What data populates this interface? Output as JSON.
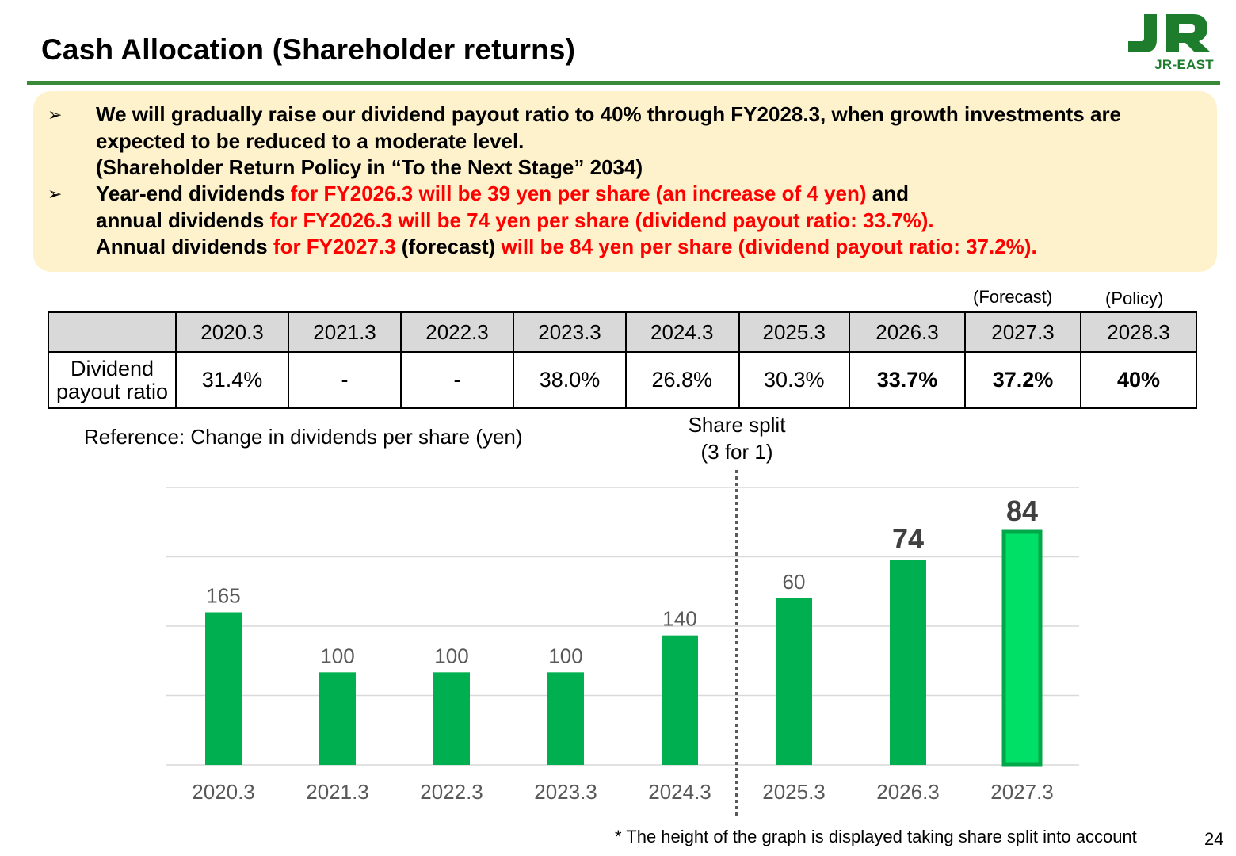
{
  "title": "Cash Allocation (Shareholder returns)",
  "logo": {
    "text": "JR-EAST",
    "brand_color": "#1d7d2d"
  },
  "summary": {
    "background": "#fef2cd",
    "bullets": [
      {
        "icon": "arrow-bullet-icon",
        "lines": [
          [
            {
              "text": "We will gradually raise our dividend payout ratio to 40% through FY2028.3, when growth investments are",
              "red": false
            }
          ],
          [
            {
              "text": "expected to be reduced to a moderate level.",
              "red": false
            }
          ],
          [
            {
              "text": "(Shareholder Return Policy in “To the Next Stage” 2034)",
              "red": false
            }
          ]
        ]
      },
      {
        "icon": "arrow-bullet-icon",
        "lines": [
          [
            {
              "text": "Year-end dividends ",
              "red": false
            },
            {
              "text": "for FY2026.3 will be 39 yen per share (an increase of 4 yen)",
              "red": true
            },
            {
              "text": " and",
              "red": false
            }
          ],
          [
            {
              "text": "annual dividends ",
              "red": false
            },
            {
              "text": "for FY2026.3 will be 74 yen per share (dividend payout ratio: 33.7%).",
              "red": true
            }
          ],
          [
            {
              "text": "Annual dividends ",
              "red": false
            },
            {
              "text": "for FY2027.3",
              "red": true
            },
            {
              "text": " (forecast) ",
              "red": false
            },
            {
              "text": "will be 84 yen per share (dividend payout ratio: 37.2%).",
              "red": true
            }
          ]
        ]
      }
    ]
  },
  "ratio_table": {
    "row_label_line1": "Dividend",
    "row_label_line2": "payout ratio",
    "forecast_note": "(Forecast)",
    "policy_note": "(Policy)",
    "columns": [
      {
        "year": "2020.3",
        "ratio": "31.4%",
        "bold": false
      },
      {
        "year": "2021.3",
        "ratio": "-",
        "bold": false
      },
      {
        "year": "2022.3",
        "ratio": "-",
        "bold": false
      },
      {
        "year": "2023.3",
        "ratio": "38.0%",
        "bold": false
      },
      {
        "year": "2024.3",
        "ratio": "26.8%",
        "bold": false
      },
      {
        "year": "2025.3",
        "ratio": "30.3%",
        "bold": false
      },
      {
        "year": "2026.3",
        "ratio": "33.7%",
        "bold": true
      },
      {
        "year": "2027.3",
        "ratio": "37.2%",
        "bold": true
      },
      {
        "year": "2028.3",
        "ratio": "40%",
        "bold": true
      }
    ]
  },
  "chart_labels": {
    "reference": "Reference: Change in dividends per share (yen)",
    "split_line1": "Share split",
    "split_line2": "(3 for 1)"
  },
  "chart_data": {
    "type": "bar",
    "categories": [
      "2020.3",
      "2021.3",
      "2022.3",
      "2023.3",
      "2024.3",
      "2025.3",
      "2026.3",
      "2027.3"
    ],
    "values": [
      165,
      100,
      100,
      100,
      140,
      60,
      74,
      84
    ],
    "value_labels": [
      "165",
      "100",
      "100",
      "100",
      "140",
      "60",
      "74",
      "84"
    ],
    "value_label_bold": [
      false,
      false,
      false,
      false,
      false,
      false,
      true,
      true
    ],
    "split_after_index": 4,
    "pre_split_scale_ymax": 300,
    "post_split_scale_ymax": 100,
    "grid": true,
    "bar_color": "#00b050",
    "highlight_color": "#00e066",
    "highlight_border": "#00a84a",
    "highlight_index": 7
  },
  "footnote": "* The height of the graph is displayed taking share split into account",
  "page_number": "24"
}
